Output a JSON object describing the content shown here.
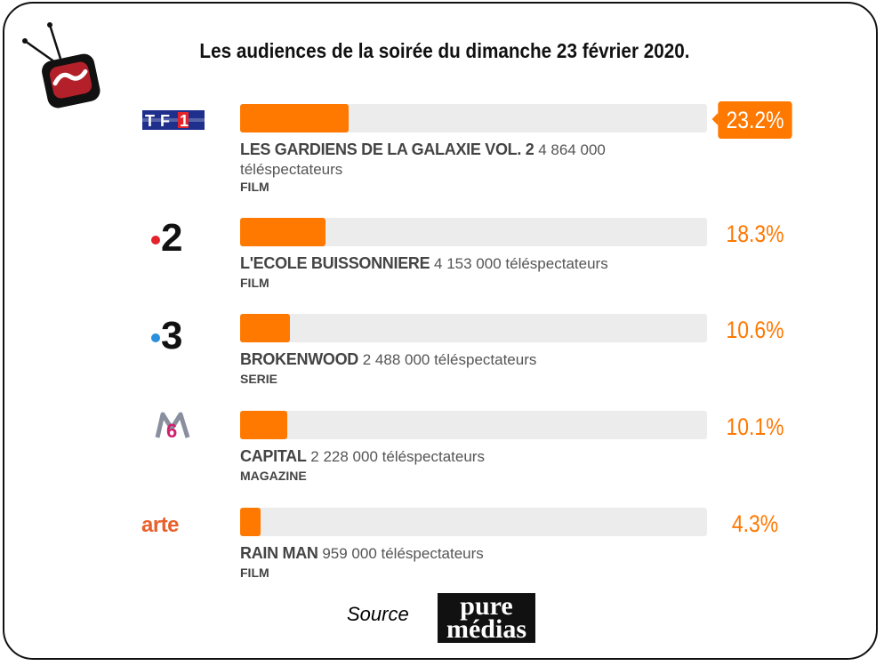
{
  "title": "Les audiences de la soirée du dimanche 23 février 2020.",
  "source_label": "Source",
  "source_logo": [
    "pure",
    "médias"
  ],
  "colors": {
    "bar": "#ff7800",
    "track": "#ececec",
    "text": "#444444"
  },
  "channels": [
    {
      "logo": "TF1",
      "percent_label": "23.2%",
      "program": "LES GARDIENS DE LA GALAXIE VOL. 2",
      "viewers": "4 864 000 téléspectateurs",
      "genre": "FILM"
    },
    {
      "logo": "2",
      "percent_label": "18.3%",
      "program": "L'ECOLE BUISSONNIERE",
      "viewers": "4 153 000 téléspectateurs",
      "genre": "FILM"
    },
    {
      "logo": "3",
      "percent_label": "10.6%",
      "program": "BROKENWOOD",
      "viewers": "2 488 000 téléspectateurs",
      "genre": "SERIE"
    },
    {
      "logo": "6",
      "percent_label": "10.1%",
      "program": "CAPITAL",
      "viewers": "2 228 000 téléspectateurs",
      "genre": "MAGAZINE"
    },
    {
      "logo": "arte",
      "percent_label": "4.3%",
      "program": "RAIN MAN",
      "viewers": "959 000 téléspectateurs",
      "genre": "FILM"
    }
  ],
  "chart_data": {
    "type": "bar",
    "orientation": "horizontal",
    "title": "Les audiences de la soirée du dimanche 23 février 2020.",
    "categories": [
      "TF1",
      "France 2",
      "France 3",
      "M6",
      "arte"
    ],
    "values": [
      23.2,
      18.3,
      10.6,
      10.1,
      4.3
    ],
    "unit": "%",
    "xlim": [
      0,
      100
    ],
    "grid": false,
    "legend": "none"
  }
}
